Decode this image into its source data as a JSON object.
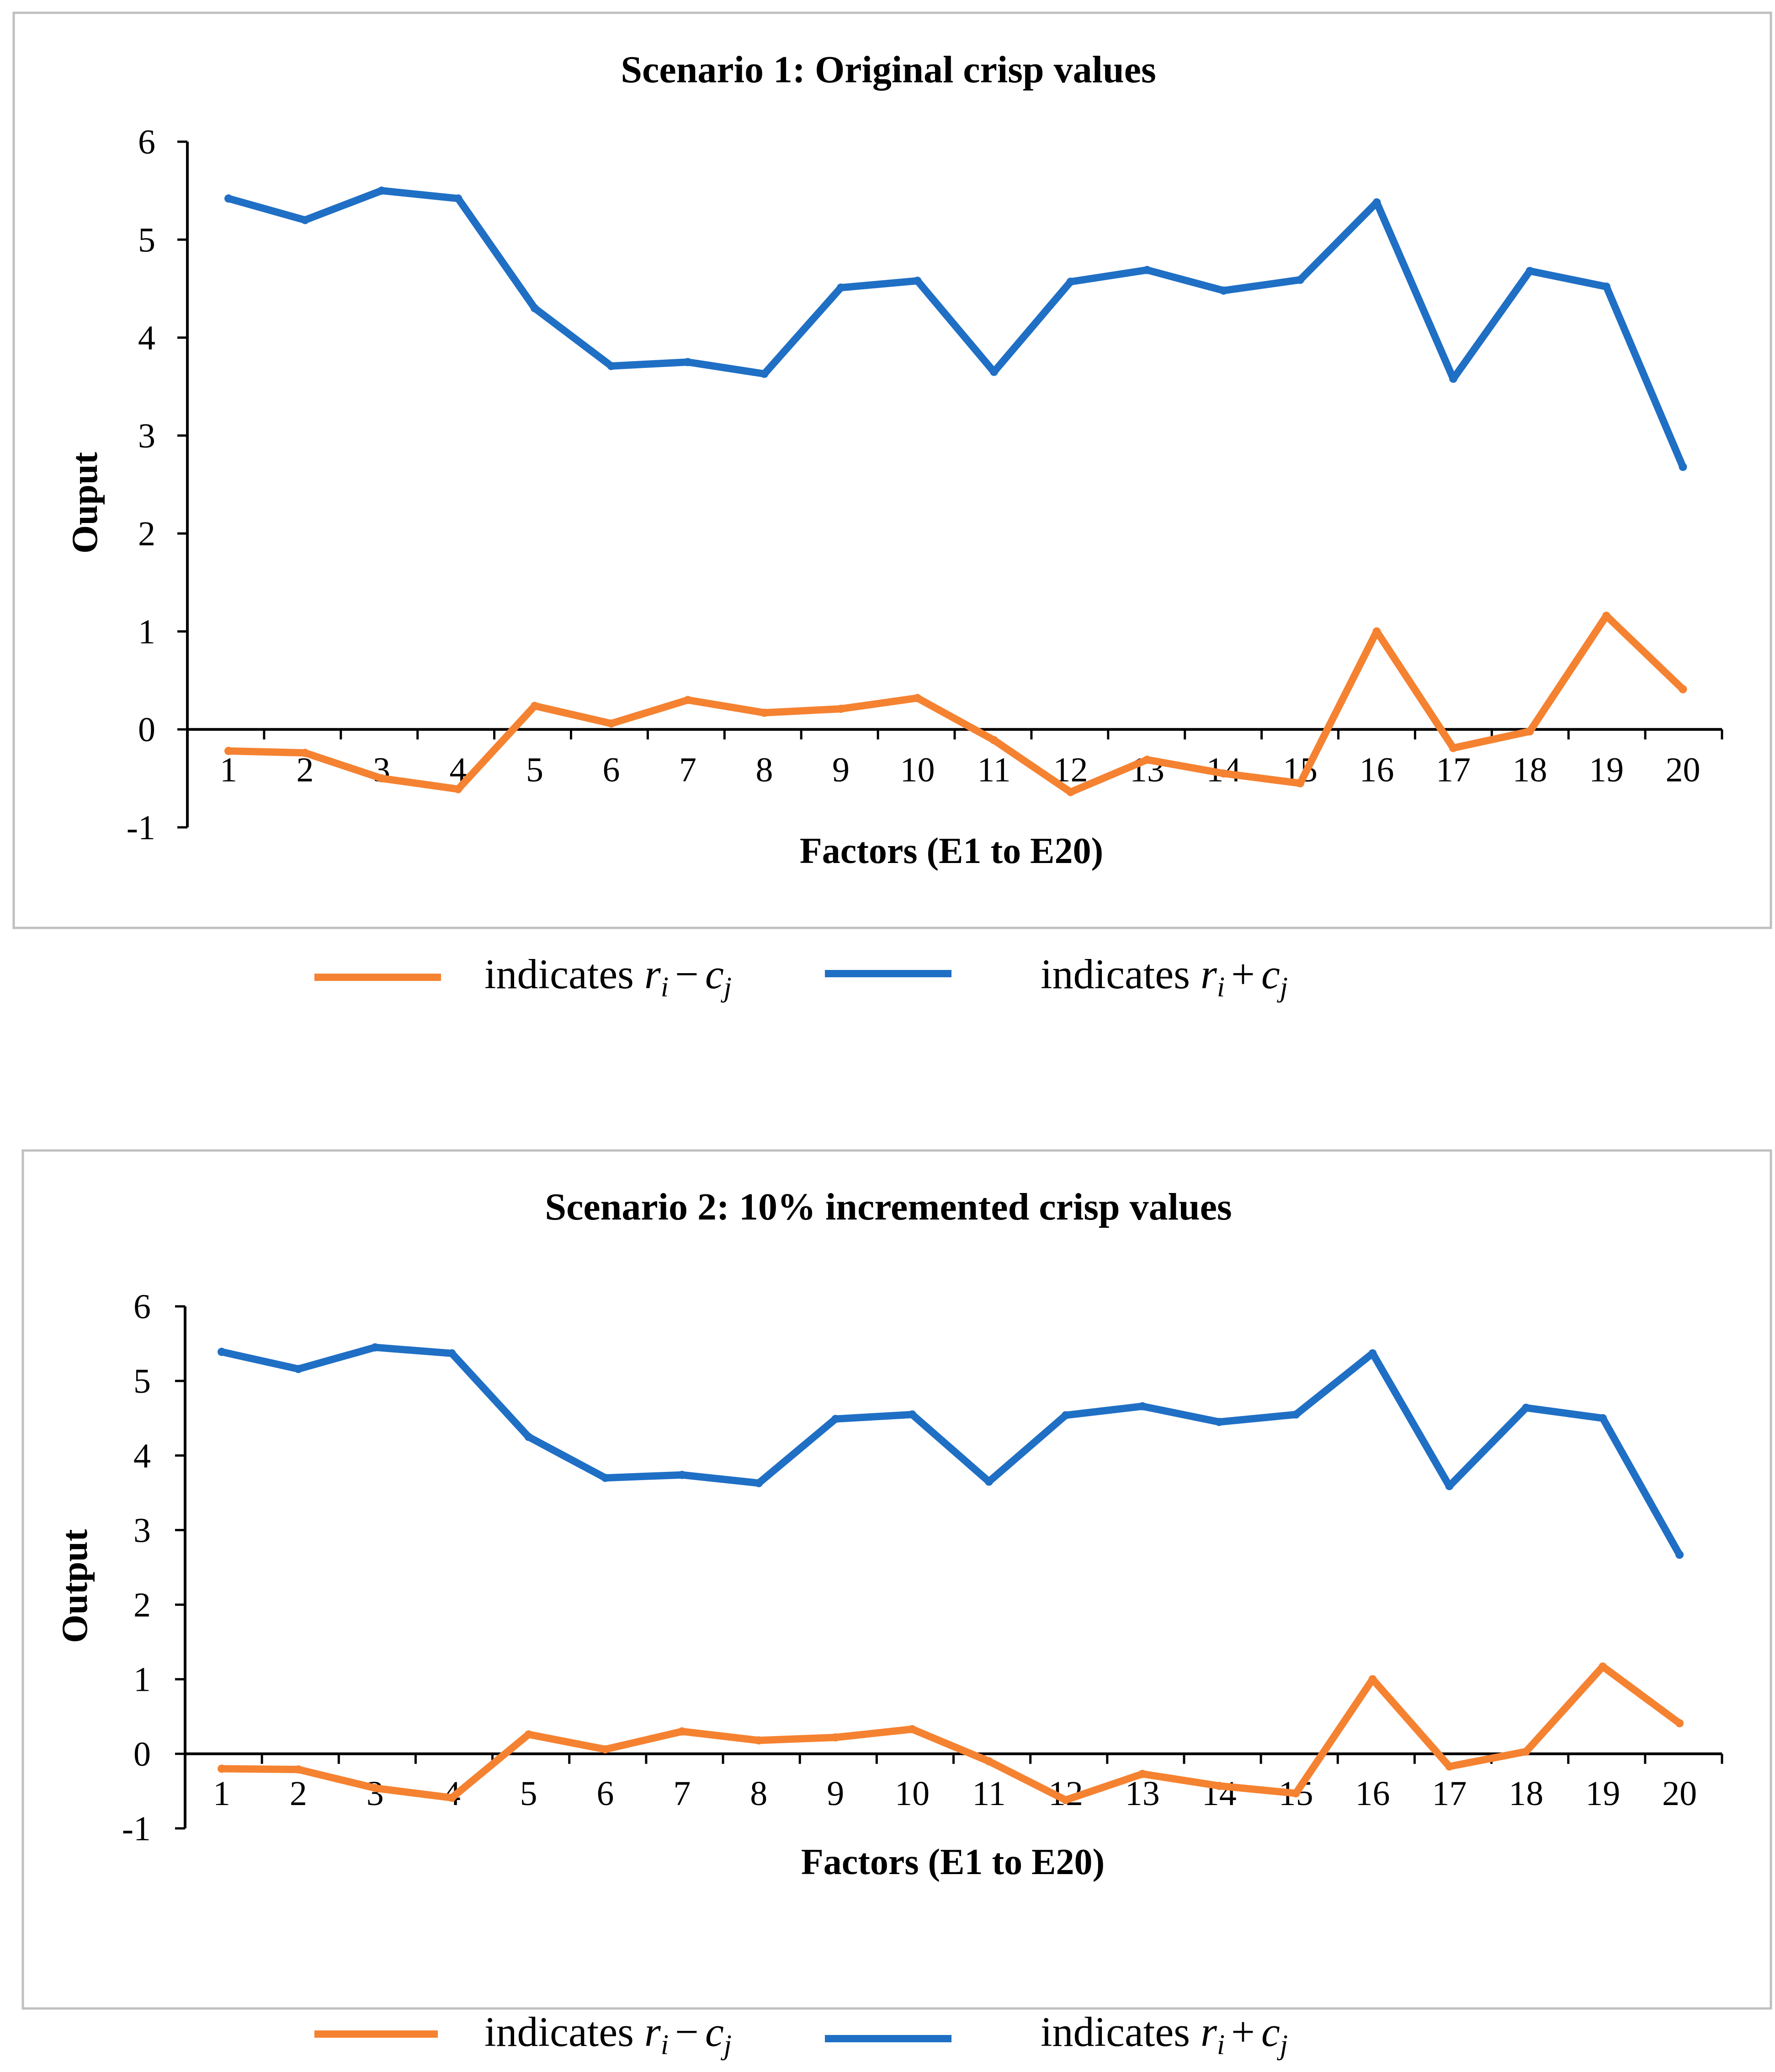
{
  "legend": {
    "prefix": "indicates",
    "minus": {
      "r": "r",
      "sub_i": "i",
      "op": "−",
      "c": "c",
      "sub_j": "j"
    },
    "plus": {
      "r": "r",
      "sub_i": "i",
      "op": "+",
      "c": "c",
      "sub_j": "j"
    }
  },
  "chart_data": [
    {
      "type": "line",
      "title": "Scenario 1: Original crisp values",
      "xlabel": "Factors (E1 to E20)",
      "ylabel": "Ouput",
      "ylim": [
        -1,
        6
      ],
      "yticks": [
        -1,
        0,
        1,
        2,
        3,
        4,
        5,
        6
      ],
      "categories": [
        "1",
        "2",
        "3",
        "4",
        "5",
        "6",
        "7",
        "8",
        "9",
        "10",
        "11",
        "12",
        "13",
        "14",
        "15",
        "16",
        "17",
        "18",
        "19",
        "20"
      ],
      "series": [
        {
          "name": "ri + cj",
          "color": "#1F6FC5",
          "values": [
            5.42,
            5.2,
            5.5,
            5.42,
            4.3,
            3.71,
            3.75,
            3.63,
            4.51,
            4.58,
            3.65,
            4.57,
            4.69,
            4.48,
            4.59,
            5.38,
            3.58,
            4.68,
            4.52,
            2.68
          ]
        },
        {
          "name": "ri - cj",
          "color": "#F58231",
          "values": [
            -0.22,
            -0.24,
            -0.5,
            -0.61,
            0.24,
            0.06,
            0.3,
            0.17,
            0.21,
            0.32,
            -0.11,
            -0.64,
            -0.31,
            -0.45,
            -0.55,
            1.0,
            -0.19,
            -0.02,
            1.16,
            0.41
          ]
        }
      ]
    },
    {
      "type": "line",
      "title": "Scenario 2: 10% incremented crisp values",
      "xlabel": "Factors (E1 to E20)",
      "ylabel": "Output",
      "ylim": [
        -1,
        6
      ],
      "yticks": [
        -1,
        0,
        1,
        2,
        3,
        4,
        5,
        6
      ],
      "categories": [
        "1",
        "2",
        "3",
        "4",
        "5",
        "6",
        "7",
        "8",
        "9",
        "10",
        "11",
        "12",
        "13",
        "14",
        "15",
        "16",
        "17",
        "18",
        "19",
        "20"
      ],
      "series": [
        {
          "name": "ri + cj",
          "color": "#1F6FC5",
          "values": [
            5.39,
            5.16,
            5.45,
            5.37,
            4.25,
            3.7,
            3.74,
            3.63,
            4.49,
            4.55,
            3.65,
            4.54,
            4.66,
            4.45,
            4.55,
            5.37,
            3.59,
            4.64,
            4.5,
            2.67
          ]
        },
        {
          "name": "ri - cj",
          "color": "#F58231",
          "values": [
            -0.2,
            -0.21,
            -0.46,
            -0.59,
            0.26,
            0.06,
            0.3,
            0.18,
            0.22,
            0.33,
            -0.1,
            -0.62,
            -0.27,
            -0.43,
            -0.53,
            1.0,
            -0.17,
            0.03,
            1.17,
            0.41
          ]
        }
      ]
    }
  ]
}
